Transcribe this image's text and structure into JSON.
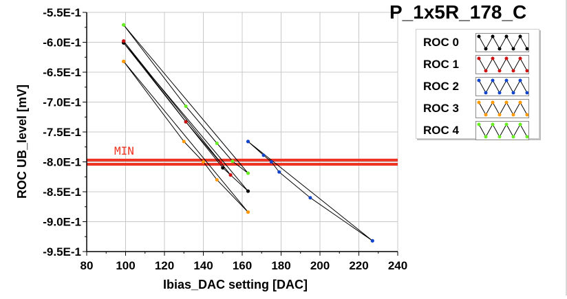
{
  "chart_data": {
    "type": "line",
    "title": "P_1x5R_178_C",
    "xlabel": "Ibias_DAC setting [DAC]",
    "ylabel": "ROC UB_level [mV]",
    "xlim": [
      80,
      240
    ],
    "ylim": [
      -0.95,
      -0.55
    ],
    "x_ticks": [
      80,
      100,
      120,
      140,
      160,
      180,
      200,
      220,
      240
    ],
    "x_tick_labels": [
      "80",
      "100",
      "120",
      "140",
      "160",
      "180",
      "200",
      "220",
      "240"
    ],
    "y_ticks": [
      -0.55,
      -0.6,
      -0.65,
      -0.7,
      -0.75,
      -0.8,
      -0.85,
      -0.9,
      -0.95
    ],
    "y_tick_labels": [
      "-5.5E-1",
      "-6.0E-1",
      "-6.5E-1",
      "-7.0E-1",
      "-7.5E-1",
      "-8.0E-1",
      "-8.5E-1",
      "-9.0E-1",
      "-9.5E-1"
    ],
    "grid": true,
    "legend_position": "top-right",
    "series": [
      {
        "name": "ROC 0",
        "color": "#000000",
        "x": [
          99,
          163,
          99,
          131,
          150,
          163,
          99
        ],
        "y": [
          -0.601,
          -0.849,
          -0.601,
          -0.733,
          -0.81,
          -0.849,
          -0.601
        ]
      },
      {
        "name": "ROC 1",
        "color": "#cc1111",
        "x": [
          99,
          154,
          99,
          131,
          149,
          154,
          99
        ],
        "y": [
          -0.598,
          -0.822,
          -0.598,
          -0.733,
          -0.802,
          -0.822,
          -0.598
        ]
      },
      {
        "name": "ROC 2",
        "color": "#1144cc",
        "x": [
          163,
          227,
          163,
          171,
          175,
          179,
          195,
          227
        ],
        "y": [
          -0.766,
          -0.932,
          -0.766,
          -0.789,
          -0.8,
          -0.817,
          -0.86,
          -0.932
        ]
      },
      {
        "name": "ROC 3",
        "color": "#ff9900",
        "x": [
          99,
          163,
          99,
          130,
          140,
          147,
          163,
          99
        ],
        "y": [
          -0.632,
          -0.884,
          -0.632,
          -0.766,
          -0.8,
          -0.83,
          -0.884,
          -0.632
        ]
      },
      {
        "name": "ROC 4",
        "color": "#66ee22",
        "x": [
          99,
          163,
          99,
          131,
          147,
          155,
          163,
          99
        ],
        "y": [
          -0.571,
          -0.819,
          -0.571,
          -0.707,
          -0.769,
          -0.799,
          -0.819,
          -0.571
        ]
      }
    ],
    "threshold_lines": [
      {
        "label": "MIN",
        "y": -0.797,
        "color": "#ee3322"
      },
      {
        "label": "",
        "y": -0.804,
        "color": "#ee3322"
      }
    ]
  }
}
